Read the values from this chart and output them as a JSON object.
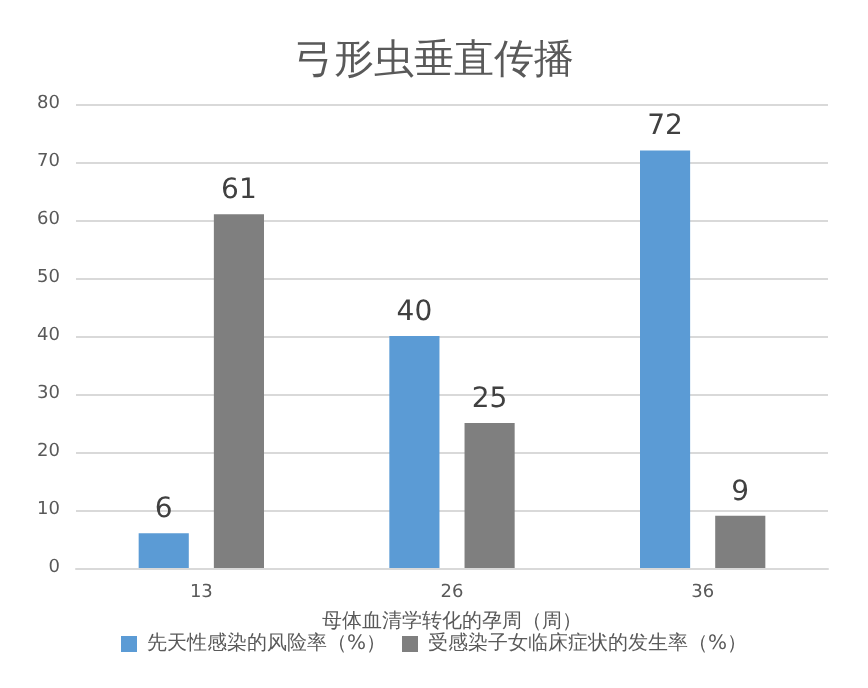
{
  "chart_data": {
    "type": "bar",
    "title": "弓形虫垂直传播",
    "xlabel": "母体血清学转化的孕周（周）",
    "categories": [
      "13",
      "26",
      "36"
    ],
    "series": [
      {
        "name": "先天性感染的风险率（%）",
        "color": "#5b9bd5",
        "values": [
          6,
          40,
          72
        ]
      },
      {
        "name": "受感染子女临床症状的发生率（%）",
        "color": "#7f7f7f",
        "values": [
          61,
          25,
          9
        ]
      }
    ],
    "ylim": [
      0,
      80
    ],
    "yticks": [
      0,
      10,
      20,
      30,
      40,
      50,
      60,
      70,
      80
    ],
    "grid": "y",
    "legend": "bottom",
    "data_labels": true
  }
}
